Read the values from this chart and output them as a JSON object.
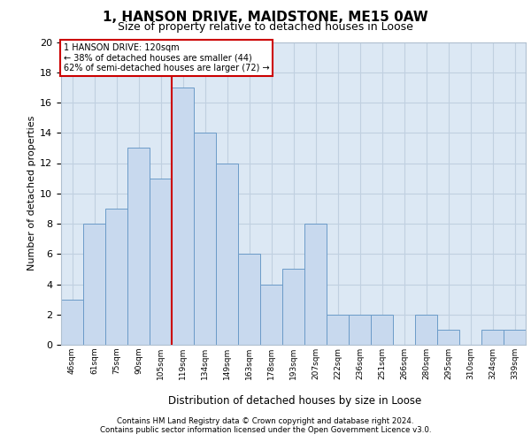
{
  "title": "1, HANSON DRIVE, MAIDSTONE, ME15 0AW",
  "subtitle": "Size of property relative to detached houses in Loose",
  "xlabel": "Distribution of detached houses by size in Loose",
  "ylabel": "Number of detached properties",
  "bin_labels": [
    "46sqm",
    "61sqm",
    "75sqm",
    "90sqm",
    "105sqm",
    "119sqm",
    "134sqm",
    "149sqm",
    "163sqm",
    "178sqm",
    "193sqm",
    "207sqm",
    "222sqm",
    "236sqm",
    "251sqm",
    "266sqm",
    "280sqm",
    "295sqm",
    "310sqm",
    "324sqm",
    "339sqm"
  ],
  "counts": [
    3,
    8,
    9,
    13,
    11,
    17,
    14,
    12,
    6,
    4,
    5,
    8,
    2,
    2,
    2,
    0,
    2,
    1,
    0,
    1,
    1
  ],
  "bar_facecolor": "#c8d9ee",
  "bar_edgecolor": "#6b9bc8",
  "property_line_x": 5,
  "property_line_color": "#cc0000",
  "annotation_line1": "1 HANSON DRIVE: 120sqm",
  "annotation_line2": "← 38% of detached houses are smaller (44)",
  "annotation_line3": "62% of semi-detached houses are larger (72) →",
  "annotation_box_edgecolor": "#cc0000",
  "footnote1": "Contains HM Land Registry data © Crown copyright and database right 2024.",
  "footnote2": "Contains public sector information licensed under the Open Government Licence v3.0.",
  "ylim": [
    0,
    20
  ],
  "yticks": [
    0,
    2,
    4,
    6,
    8,
    10,
    12,
    14,
    16,
    18,
    20
  ],
  "grid_color": "#c0d0e0",
  "bg_color": "#dce8f4"
}
